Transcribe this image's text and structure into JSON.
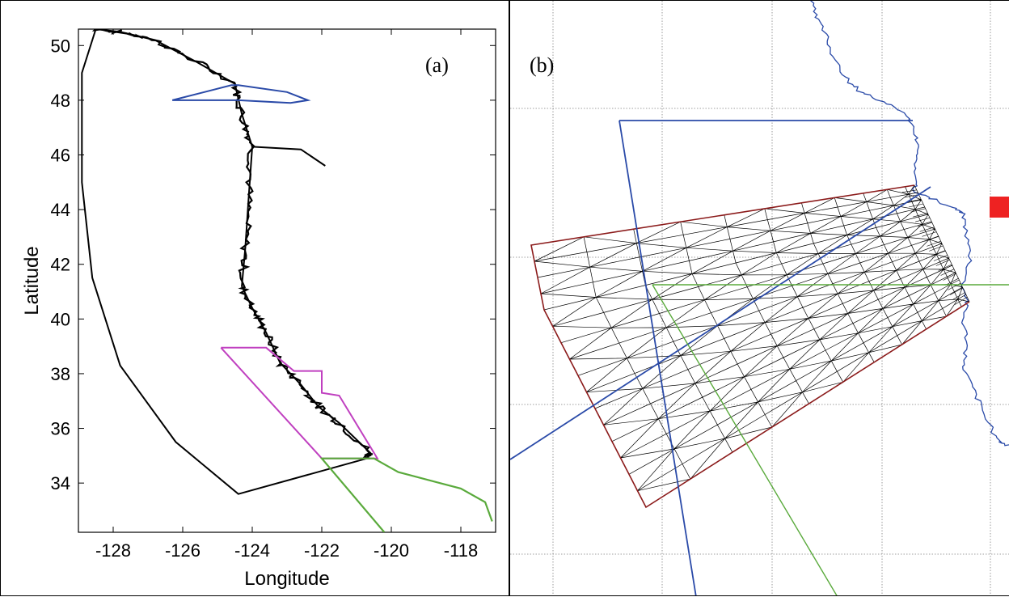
{
  "panel_a": {
    "label": "(a)",
    "xlabel": "Longitude",
    "ylabel": "Latitude",
    "xlim": [
      -129,
      -117
    ],
    "ylim": [
      32.2,
      50.6
    ],
    "xticks": [
      -128,
      -126,
      -124,
      -122,
      -120,
      -118
    ],
    "yticks": [
      34,
      36,
      38,
      40,
      42,
      44,
      46,
      48,
      50
    ],
    "colors": {
      "domain": "#000000",
      "inner_blue": "#2a4aa8",
      "inner_magenta": "#c040c0",
      "inner_green": "#5aaa3c"
    },
    "domain_outline": [
      [
        -128.5,
        50.6
      ],
      [
        -127.8,
        50.5
      ],
      [
        -126.8,
        50.2
      ],
      [
        -125.6,
        49.4
      ],
      [
        -124.5,
        48.6
      ],
      [
        -124.3,
        47.5
      ],
      [
        -124.0,
        46.3
      ],
      [
        -124.1,
        44.5
      ],
      [
        -124.2,
        42.6
      ],
      [
        -124.3,
        41.2
      ],
      [
        -124.0,
        40.4
      ],
      [
        -123.6,
        39.5
      ],
      [
        -123.2,
        38.4
      ],
      [
        -122.6,
        37.6
      ],
      [
        -122.1,
        36.8
      ],
      [
        -121.5,
        36.2
      ],
      [
        -120.6,
        35.1
      ],
      [
        -120.7,
        34.9
      ],
      [
        -124.4,
        33.6
      ],
      [
        -126.2,
        35.5
      ],
      [
        -127.8,
        38.3
      ],
      [
        -128.6,
        41.5
      ],
      [
        -128.9,
        45.0
      ],
      [
        -128.9,
        49.0
      ],
      [
        -128.5,
        50.6
      ]
    ],
    "blue_box": [
      [
        -126.3,
        48.0
      ],
      [
        -124.6,
        48.55
      ],
      [
        -124.4,
        48.55
      ],
      [
        -123.0,
        48.3
      ],
      [
        -122.4,
        48.0
      ],
      [
        -122.9,
        47.9
      ],
      [
        -124.4,
        48.0
      ],
      [
        -126.3,
        48.0
      ]
    ],
    "magenta_box": [
      [
        -124.9,
        38.95
      ],
      [
        -123.6,
        38.95
      ],
      [
        -122.8,
        38.1
      ],
      [
        -122.0,
        38.1
      ],
      [
        -122.0,
        37.3
      ],
      [
        -121.5,
        37.2
      ],
      [
        -120.4,
        34.9
      ],
      [
        -122.0,
        34.9
      ],
      [
        -124.9,
        38.95
      ]
    ],
    "green_path": [
      [
        -122.0,
        34.9
      ],
      [
        -120.2,
        32.2
      ],
      [
        -122.0,
        34.9
      ],
      [
        -120.5,
        34.9
      ],
      [
        -119.8,
        34.4
      ],
      [
        -118.6,
        34.0
      ],
      [
        -118.0,
        33.8
      ],
      [
        -117.3,
        33.3
      ],
      [
        -117.1,
        32.6
      ]
    ],
    "coast_features": [
      [
        -122.6,
        46.2
      ],
      [
        -121.9,
        45.6
      ]
    ]
  },
  "panel_b": {
    "label": "(b)",
    "colors": {
      "grid": "#808080",
      "mesh": "#000000",
      "mesh_border": "#8b1a1a",
      "blue": "#2a4aa8",
      "green": "#5aaa3c",
      "marker": "#ee2222",
      "coast": "#2a4aa8"
    }
  }
}
